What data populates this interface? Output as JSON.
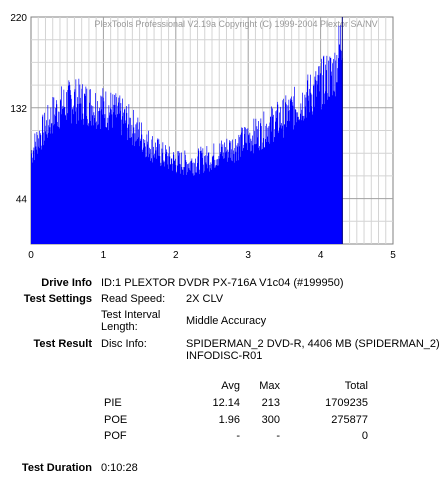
{
  "chart_data": {
    "type": "area",
    "title": "PlexTools Professional V2.19a Copyright (C) 1999-2004 Plextor SA/NV",
    "xlabel": "",
    "ylabel": "",
    "xlim": [
      0,
      5
    ],
    "ylim": [
      0,
      220
    ],
    "x_ticks": [
      "0",
      "1",
      "2",
      "3",
      "4",
      "5"
    ],
    "y_ticks": [
      "220",
      "132",
      "44"
    ],
    "y_tick_values": [
      220,
      132,
      44
    ],
    "grid": true,
    "series": [
      {
        "color": "#0000ff",
        "x": [
          0,
          0.1,
          0.2,
          0.3,
          0.4,
          0.5,
          0.6,
          0.7,
          0.8,
          0.9,
          1.0,
          1.1,
          1.2,
          1.3,
          1.4,
          1.5,
          1.6,
          1.7,
          1.8,
          1.9,
          2.0,
          2.1,
          2.2,
          2.3,
          2.4,
          2.5,
          2.6,
          2.7,
          2.8,
          2.9,
          3.0,
          3.1,
          3.2,
          3.3,
          3.4,
          3.5,
          3.6,
          3.7,
          3.8,
          3.9,
          4.0,
          4.1,
          4.2,
          4.3
        ],
        "values": [
          90,
          105,
          115,
          128,
          135,
          140,
          142,
          140,
          138,
          136,
          135,
          132,
          128,
          122,
          116,
          108,
          100,
          94,
          88,
          84,
          81,
          80,
          80,
          82,
          84,
          86,
          90,
          93,
          96,
          100,
          105,
          108,
          112,
          118,
          122,
          126,
          132,
          138,
          145,
          150,
          158,
          165,
          172,
          212
        ]
      }
    ]
  },
  "info": {
    "drive_info_label": "Drive Info",
    "drive_info_value": "ID:1 PLEXTOR DVDR PX-716A V1c04 (#199950)",
    "test_settings_label": "Test Settings",
    "read_speed_label": "Read Speed:",
    "read_speed_value": "2X CLV",
    "interval_label_1": "Test Interval",
    "interval_label_2": "Length:",
    "interval_value": "Middle Accuracy",
    "test_result_label": "Test Result",
    "disc_info_label": "Disc Info:",
    "disc_info_line1": "SPIDERMAN_2 DVD-R, 4406 MB (SPIDERMAN_2)",
    "disc_info_line2": "INFODISC-R01",
    "test_duration_label": "Test Duration",
    "test_duration_value": "0:10:28"
  },
  "results": {
    "headers": [
      "Avg",
      "Max",
      "Total"
    ],
    "rows": [
      {
        "name": "PIE",
        "avg": "12.14",
        "max": "213",
        "total": "1709235"
      },
      {
        "name": "POE",
        "avg": "1.96",
        "max": "300",
        "total": "275877"
      },
      {
        "name": "POF",
        "avg": "-",
        "max": "-",
        "total": "0"
      }
    ]
  }
}
